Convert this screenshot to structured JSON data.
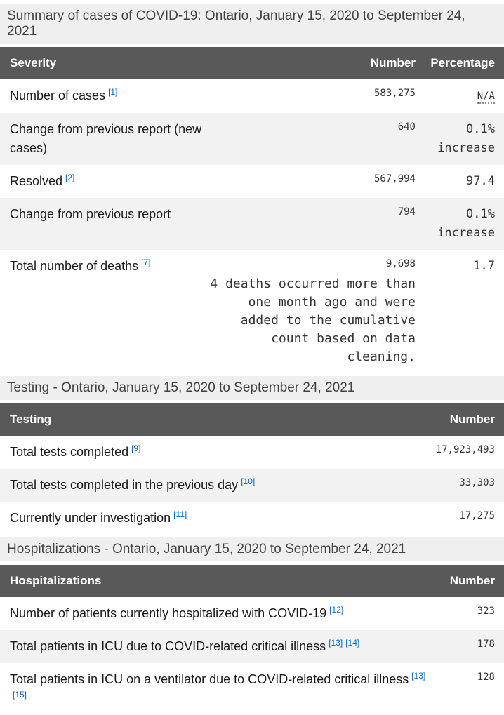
{
  "colors": {
    "table_header_bg": "#595959",
    "section_heading_bg": "#efefef",
    "row_alt_bg": "#f2f2f2",
    "footnote_link": "#0066cc"
  },
  "sections": [
    {
      "id": "summary",
      "heading": "Summary of cases of COVID-19: Ontario, January 15, 2020 to September 24, 2021",
      "columns": [
        "Severity",
        "Number",
        "Percentage"
      ],
      "rows": [
        {
          "label": "Number of cases",
          "refs": [
            "1"
          ],
          "number": "583,275",
          "percentage": "N/A",
          "percentage_is_abbr": true
        },
        {
          "label": "Change from previous report (new cases)",
          "refs": [],
          "number": "640",
          "percentage": "0.1%\nincrease"
        },
        {
          "label": "Resolved",
          "refs": [
            "2"
          ],
          "number": "567,994",
          "percentage": "97.4"
        },
        {
          "label": "Change from previous report",
          "refs": [],
          "number": "794",
          "percentage": "0.1%\nincrease"
        },
        {
          "label": "Total number of deaths",
          "refs": [
            "7"
          ],
          "number": "9,698",
          "number_note": "4 deaths occurred more than\none month ago and were\nadded to the cumulative\ncount based on data\ncleaning.",
          "percentage": "1.7"
        }
      ]
    },
    {
      "id": "testing",
      "heading": "Testing - Ontario, January 15, 2020 to September 24, 2021",
      "columns": [
        "Testing",
        "Number"
      ],
      "rows": [
        {
          "label": "Total tests completed",
          "refs": [
            "9"
          ],
          "number": "17,923,493"
        },
        {
          "label": "Total tests completed in the previous day",
          "refs": [
            "10"
          ],
          "number": "33,303"
        },
        {
          "label": "Currently under investigation",
          "refs": [
            "11"
          ],
          "number": "17,275"
        }
      ]
    },
    {
      "id": "hospitalizations",
      "heading": "Hospitalizations - Ontario, January 15, 2020 to September 24, 2021",
      "columns": [
        "Hospitalizations",
        "Number"
      ],
      "rows": [
        {
          "label": "Number of patients currently hospitalized with COVID-19",
          "refs": [
            "12"
          ],
          "number": "323"
        },
        {
          "label": "Total patients in ICU due to COVID-related critical illness",
          "refs": [
            "13",
            "14"
          ],
          "number": "178"
        },
        {
          "label": "Total patients in ICU on a ventilator due to COVID-related critical illness",
          "refs": [
            "13",
            "15"
          ],
          "number": "128"
        }
      ]
    }
  ]
}
